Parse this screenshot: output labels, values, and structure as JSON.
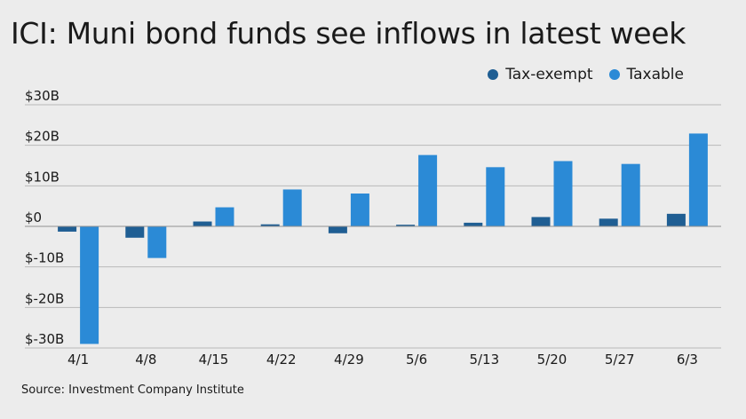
{
  "title": "ICI: Muni bond funds see inflows in latest week",
  "source": "Source: Investment Company Institute",
  "legend": {
    "items": [
      {
        "label": "Tax-exempt",
        "color": "#1f5e93"
      },
      {
        "label": "Taxable",
        "color": "#2b8ad6"
      }
    ]
  },
  "chart_data": {
    "type": "bar",
    "categories": [
      "4/1",
      "4/8",
      "4/15",
      "4/22",
      "4/29",
      "5/6",
      "5/13",
      "5/20",
      "5/27",
      "6/3"
    ],
    "series": [
      {
        "name": "Tax-exempt",
        "color": "#1f5e93",
        "values": [
          -1.3,
          -2.8,
          1.2,
          0.5,
          -1.7,
          0.4,
          0.9,
          2.3,
          1.9,
          3.1
        ]
      },
      {
        "name": "Taxable",
        "color": "#2b8ad6",
        "values": [
          -29.0,
          -7.8,
          4.7,
          9.1,
          8.1,
          17.6,
          14.6,
          16.1,
          15.4,
          22.9
        ]
      }
    ],
    "yticks": [
      30,
      20,
      10,
      0,
      -10,
      -20,
      -30
    ],
    "ytick_labels": [
      "$30B",
      "$20B",
      "$10B",
      "$0",
      "$-10B",
      "$-20B",
      "$-30B"
    ],
    "ylim": [
      -30,
      30
    ],
    "grid": true,
    "legend_position": "top-right"
  }
}
